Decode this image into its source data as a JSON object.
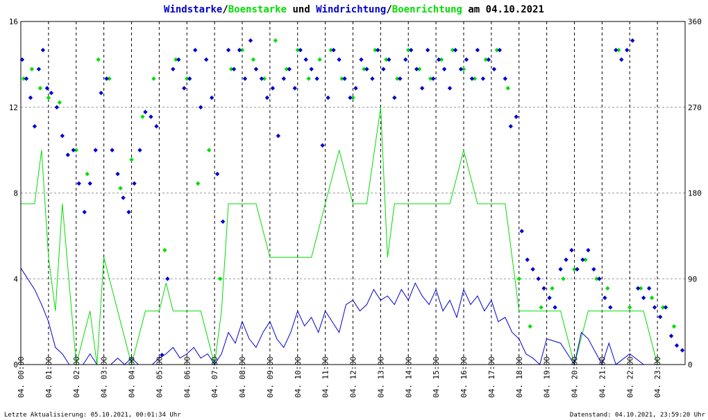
{
  "title": {
    "part1": "Windstarke",
    "sep1": "/",
    "part2": "Boenstarke",
    "mid": " und ",
    "part3": "Windrichtung",
    "sep2": "/",
    "part4": "Boenrichtung",
    "tail": " am 04.10.2021"
  },
  "footer": {
    "left": "Letzte Aktualisierung: 05.10.2021, 00:01:34 Uhr",
    "right": "Datenstand: 04.10.2021, 23:59:20 Uhr"
  },
  "colors": {
    "wind": "#0000cc",
    "gust": "#00dd00",
    "title_text": "#000000",
    "title_blue": "#0000cc",
    "title_green": "#00dd00",
    "grid": "#999999",
    "hour_line": "#000000"
  },
  "chart_data": {
    "type": "line",
    "left_axis": {
      "ylim": [
        0,
        16
      ],
      "ticks": [
        "0",
        "4",
        "8",
        "12",
        "16"
      ]
    },
    "right_axis": {
      "ylim": [
        0,
        360
      ],
      "ticks": [
        "0",
        "90",
        "180",
        "270",
        "360"
      ]
    },
    "x_ticks": [
      "04. 00:00",
      "04. 01:00",
      "04. 02:00",
      "04. 03:00",
      "04. 04:00",
      "04. 05:00",
      "04. 06:00",
      "04. 07:00",
      "04. 08:00",
      "04. 09:00",
      "04. 10:00",
      "04. 11:00",
      "04. 12:00",
      "04. 13:00",
      "04. 14:00",
      "04. 15:00",
      "04. 16:00",
      "04. 17:00",
      "04. 18:00",
      "04. 19:00",
      "04. 20:00",
      "04. 21:00",
      "04. 22:00",
      "04. 23:00"
    ],
    "xlim_hours": [
      0,
      24
    ],
    "grid": true,
    "series": [
      {
        "key": "wind_speed",
        "style": "line",
        "axis": "left",
        "x_hours": [
          0.0,
          0.5,
          0.75,
          1.0,
          1.25,
          1.5,
          1.75,
          2.0,
          2.25,
          2.5,
          2.75,
          3.0,
          3.25,
          3.5,
          3.75,
          4.0,
          4.25,
          4.5,
          4.75,
          5.0,
          5.25,
          5.5,
          5.75,
          6.0,
          6.25,
          6.5,
          6.75,
          7.0,
          7.25,
          7.5,
          7.75,
          8.0,
          8.25,
          8.5,
          8.75,
          9.0,
          9.25,
          9.5,
          9.75,
          10.0,
          10.25,
          10.5,
          10.75,
          11.0,
          11.25,
          11.5,
          11.75,
          12.0,
          12.25,
          12.5,
          12.75,
          13.0,
          13.25,
          13.5,
          13.75,
          14.0,
          14.25,
          14.5,
          14.75,
          15.0,
          15.25,
          15.5,
          15.75,
          16.0,
          16.25,
          16.5,
          16.75,
          17.0,
          17.25,
          17.5,
          17.75,
          18.0,
          18.25,
          18.5,
          18.75,
          19.0,
          19.5,
          20.0,
          20.25,
          20.5,
          21.0,
          21.25,
          21.5,
          22.0,
          22.5,
          23.0,
          23.5,
          24.0
        ],
        "values": [
          4.5,
          3.5,
          2.8,
          2.0,
          0.8,
          0.5,
          0.0,
          0.0,
          0.0,
          0.5,
          0.0,
          0.0,
          0.0,
          0.3,
          0.0,
          0.3,
          0.0,
          0.0,
          0.0,
          0.3,
          0.5,
          0.8,
          0.3,
          0.5,
          0.8,
          0.3,
          0.5,
          0.0,
          0.5,
          1.5,
          1.0,
          2.0,
          1.2,
          0.8,
          1.5,
          2.0,
          1.2,
          0.8,
          1.5,
          2.5,
          1.8,
          2.2,
          1.5,
          2.5,
          2.0,
          1.5,
          2.8,
          3.0,
          2.5,
          2.8,
          3.5,
          3.0,
          3.2,
          2.8,
          3.5,
          3.0,
          3.8,
          3.2,
          2.8,
          3.5,
          2.5,
          3.0,
          2.2,
          3.5,
          2.8,
          3.2,
          2.5,
          3.0,
          2.0,
          2.2,
          1.5,
          1.2,
          0.5,
          0.3,
          0.0,
          1.2,
          1.0,
          0.0,
          1.5,
          1.2,
          0.0,
          1.0,
          0.0,
          0.5,
          0.0,
          0.0,
          0.0,
          0.0
        ]
      },
      {
        "key": "gust_speed",
        "style": "line",
        "axis": "left",
        "x_hours": [
          0.0,
          0.5,
          0.75,
          1.0,
          1.25,
          1.5,
          2.0,
          2.5,
          2.75,
          3.0,
          3.5,
          4.0,
          4.5,
          5.0,
          5.25,
          5.5,
          6.0,
          6.5,
          7.0,
          7.25,
          7.5,
          8.0,
          8.5,
          9.0,
          9.5,
          10.0,
          10.5,
          11.0,
          11.5,
          12.0,
          12.5,
          13.0,
          13.25,
          13.5,
          14.0,
          14.5,
          15.0,
          15.5,
          16.0,
          16.5,
          17.0,
          17.5,
          18.0,
          18.5,
          19.0,
          19.5,
          20.0,
          20.5,
          21.0,
          21.5,
          22.0,
          22.5,
          23.0,
          23.5,
          24.0
        ],
        "values": [
          7.5,
          7.5,
          10.0,
          5.0,
          2.5,
          7.5,
          0.0,
          2.5,
          0.0,
          5.0,
          2.5,
          0.0,
          2.5,
          2.5,
          3.8,
          2.5,
          2.5,
          2.5,
          0.0,
          2.5,
          7.5,
          7.5,
          7.5,
          5.0,
          5.0,
          5.0,
          5.0,
          7.5,
          10.0,
          7.5,
          7.5,
          12.0,
          5.0,
          7.5,
          7.5,
          7.5,
          7.5,
          7.5,
          10.0,
          7.5,
          7.5,
          7.5,
          2.5,
          2.5,
          2.5,
          2.5,
          0.0,
          2.5,
          2.5,
          2.5,
          2.5,
          2.5,
          0.0,
          0.0,
          0.0
        ]
      },
      {
        "key": "wind_direction",
        "style": "scatter",
        "axis": "right",
        "x_hours": [
          0.05,
          0.2,
          0.35,
          0.5,
          0.65,
          0.8,
          0.95,
          1.1,
          1.3,
          1.5,
          1.7,
          1.9,
          2.1,
          2.3,
          2.5,
          2.7,
          2.9,
          3.1,
          3.3,
          3.5,
          3.7,
          3.9,
          4.1,
          4.3,
          4.5,
          4.7,
          4.9,
          5.1,
          5.3,
          5.5,
          5.7,
          5.9,
          6.1,
          6.3,
          6.5,
          6.7,
          6.9,
          7.1,
          7.3,
          7.5,
          7.7,
          7.9,
          8.1,
          8.3,
          8.5,
          8.7,
          8.9,
          9.1,
          9.3,
          9.5,
          9.7,
          9.9,
          10.1,
          10.3,
          10.5,
          10.7,
          10.9,
          11.1,
          11.3,
          11.5,
          11.7,
          11.9,
          12.1,
          12.3,
          12.5,
          12.7,
          12.9,
          13.1,
          13.3,
          13.5,
          13.7,
          13.9,
          14.1,
          14.3,
          14.5,
          14.7,
          14.9,
          15.1,
          15.3,
          15.5,
          15.7,
          15.9,
          16.1,
          16.3,
          16.5,
          16.7,
          16.9,
          17.1,
          17.3,
          17.5,
          17.7,
          17.9,
          18.1,
          18.3,
          18.5,
          18.7,
          18.9,
          19.1,
          19.3,
          19.5,
          19.7,
          19.9,
          20.1,
          20.3,
          20.5,
          20.7,
          20.9,
          21.1,
          21.3,
          21.5,
          21.7,
          21.9,
          22.1,
          22.3,
          22.5,
          22.7,
          22.9,
          23.1,
          23.3,
          23.5,
          23.7,
          23.9
        ],
        "values": [
          320,
          300,
          280,
          250,
          310,
          330,
          290,
          285,
          270,
          240,
          220,
          225,
          190,
          160,
          190,
          225,
          285,
          300,
          225,
          200,
          175,
          160,
          190,
          225,
          265,
          260,
          250,
          10,
          90,
          310,
          320,
          290,
          300,
          330,
          270,
          320,
          280,
          200,
          150,
          330,
          310,
          330,
          300,
          340,
          310,
          300,
          280,
          290,
          240,
          300,
          310,
          290,
          330,
          320,
          310,
          300,
          230,
          280,
          330,
          320,
          300,
          280,
          290,
          320,
          310,
          300,
          330,
          310,
          320,
          280,
          300,
          320,
          330,
          310,
          290,
          330,
          300,
          320,
          310,
          290,
          330,
          310,
          320,
          300,
          330,
          300,
          320,
          310,
          330,
          300,
          250,
          260,
          140,
          110,
          100,
          90,
          80,
          70,
          60,
          100,
          110,
          120,
          100,
          110,
          120,
          100,
          90,
          70,
          60,
          330,
          320,
          330,
          340,
          80,
          70,
          80,
          60,
          50,
          60,
          30,
          20,
          15
        ]
      },
      {
        "key": "gust_direction",
        "style": "scatter",
        "axis": "right",
        "x_hours": [
          0.1,
          0.4,
          0.7,
          1.0,
          1.4,
          2.0,
          2.4,
          2.8,
          3.2,
          3.6,
          4.0,
          4.4,
          4.8,
          5.2,
          5.6,
          6.0,
          6.4,
          6.8,
          7.2,
          7.6,
          8.0,
          8.4,
          8.8,
          9.2,
          9.6,
          10.0,
          10.4,
          10.8,
          11.2,
          11.6,
          12.0,
          12.4,
          12.8,
          13.2,
          13.6,
          14.0,
          14.4,
          14.8,
          15.2,
          15.6,
          16.0,
          16.4,
          16.8,
          17.2,
          17.6,
          18.0,
          18.4,
          18.8,
          19.2,
          19.6,
          20.0,
          20.4,
          20.8,
          21.2,
          21.6,
          22.0,
          22.4,
          22.8,
          23.2,
          23.6
        ],
        "values": [
          300,
          310,
          290,
          280,
          275,
          225,
          200,
          320,
          300,
          185,
          215,
          260,
          300,
          120,
          320,
          300,
          190,
          225,
          90,
          310,
          330,
          320,
          300,
          340,
          310,
          330,
          300,
          320,
          330,
          300,
          280,
          310,
          330,
          320,
          300,
          330,
          310,
          300,
          320,
          330,
          310,
          300,
          320,
          330,
          290,
          90,
          40,
          60,
          80,
          90,
          100,
          110,
          90,
          80,
          330,
          60,
          80,
          70,
          60,
          40
        ]
      }
    ]
  }
}
